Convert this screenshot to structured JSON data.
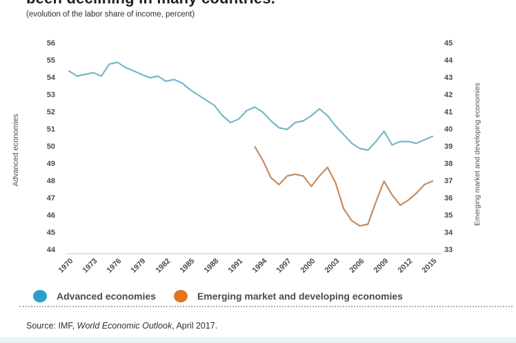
{
  "title": "been declining in many countries.",
  "subtitle": "(evolution of the labor share of income, percent)",
  "left_axis": {
    "label": "Advanced economies",
    "ticks": [
      56,
      55,
      54,
      53,
      52,
      51,
      50,
      49,
      48,
      47,
      46,
      45,
      44
    ]
  },
  "right_axis": {
    "label": "Emerging market and developing economies",
    "ticks": [
      45,
      44,
      43,
      42,
      41,
      40,
      39,
      38,
      37,
      36,
      35,
      34,
      33
    ]
  },
  "x_axis": {
    "ticks": [
      1970,
      1973,
      1976,
      1979,
      1982,
      1985,
      1988,
      1991,
      1994,
      1997,
      2000,
      2003,
      2006,
      2009,
      2012,
      2015
    ]
  },
  "legend": [
    {
      "label": "Advanced economies",
      "color": "#2b9fc9"
    },
    {
      "label": "Emerging market and developing economies",
      "color": "#e0761f"
    }
  ],
  "source": {
    "prefix": "Source: IMF, ",
    "italic": "World Economic Outlook",
    "suffix": ", April 2017."
  },
  "chart_data": {
    "type": "line",
    "title": "been declining in many countries.",
    "subtitle": "(evolution of the labor share of income, percent)",
    "grid": false,
    "legend_position": "bottom",
    "x_range": [
      1970,
      2015
    ],
    "left_ylim": [
      44,
      56
    ],
    "right_ylim": [
      33,
      45
    ],
    "left_axis_label": "Advanced economies",
    "right_axis_label": "Emerging market and developing economies",
    "series": [
      {
        "name": "Advanced economies",
        "axis": "left",
        "color": "#74b7c8",
        "x": [
          1970,
          1971,
          1972,
          1973,
          1974,
          1975,
          1976,
          1977,
          1978,
          1979,
          1980,
          1981,
          1982,
          1983,
          1984,
          1985,
          1986,
          1987,
          1988,
          1989,
          1990,
          1991,
          1992,
          1993,
          1994,
          1995,
          1996,
          1997,
          1998,
          1999,
          2000,
          2001,
          2002,
          2003,
          2004,
          2005,
          2006,
          2007,
          2008,
          2009,
          2010,
          2011,
          2012,
          2013,
          2014,
          2015
        ],
        "values": [
          54.4,
          54.1,
          54.2,
          54.3,
          54.1,
          54.8,
          54.9,
          54.6,
          54.4,
          54.2,
          54.0,
          54.1,
          53.8,
          53.9,
          53.7,
          53.3,
          53.0,
          52.7,
          52.4,
          51.8,
          51.4,
          51.6,
          52.1,
          52.3,
          52.0,
          51.5,
          51.1,
          51.0,
          51.4,
          51.5,
          51.8,
          52.2,
          51.8,
          51.2,
          50.7,
          50.2,
          49.9,
          49.8,
          50.3,
          50.9,
          50.1,
          50.3,
          50.3,
          50.2,
          50.4,
          50.6
        ]
      },
      {
        "name": "Emerging market and developing economies",
        "axis": "right",
        "color": "#c68a5c",
        "x": [
          1993,
          1994,
          1995,
          1996,
          1997,
          1998,
          1999,
          2000,
          2001,
          2002,
          2003,
          2004,
          2005,
          2006,
          2007,
          2008,
          2009,
          2010,
          2011,
          2012,
          2013,
          2014,
          2015
        ],
        "values": [
          39.0,
          38.2,
          37.2,
          36.8,
          37.3,
          37.4,
          37.3,
          36.7,
          37.3,
          37.8,
          36.9,
          35.4,
          34.7,
          34.4,
          34.5,
          35.8,
          37.0,
          36.2,
          35.6,
          35.9,
          36.3,
          36.8,
          37.0
        ]
      }
    ]
  }
}
